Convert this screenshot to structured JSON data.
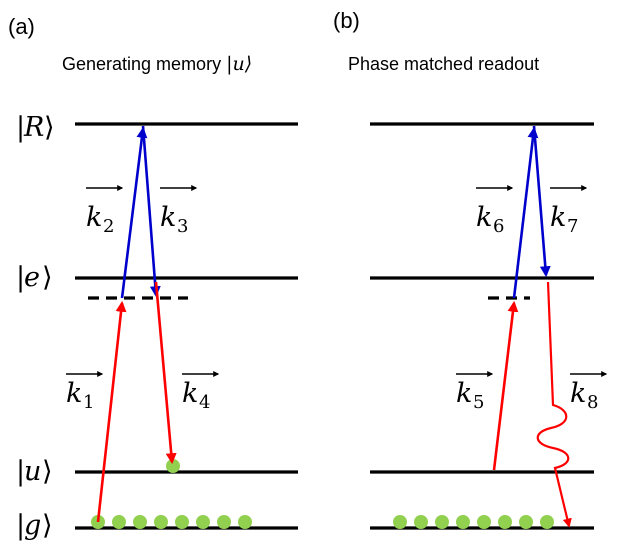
{
  "panels": [
    {
      "label": "(a)",
      "title_main": "Generating memory ",
      "title_ket": "|u⟩"
    },
    {
      "label": "(b)",
      "title_main": "Phase matched readout"
    }
  ],
  "levels": [
    {
      "symbol": "R"
    },
    {
      "symbol": "e"
    },
    {
      "symbol": "u"
    },
    {
      "symbol": "g"
    }
  ],
  "wavevectors": {
    "k1": "1",
    "k2": "2",
    "k3": "3",
    "k4": "4",
    "k5": "5",
    "k6": "6",
    "k7": "7",
    "k8": "8"
  },
  "colors": {
    "red_beam": "#ff0000",
    "blue_beam": "#0000cc",
    "atoms": "#92d050",
    "levels": "#000000"
  }
}
